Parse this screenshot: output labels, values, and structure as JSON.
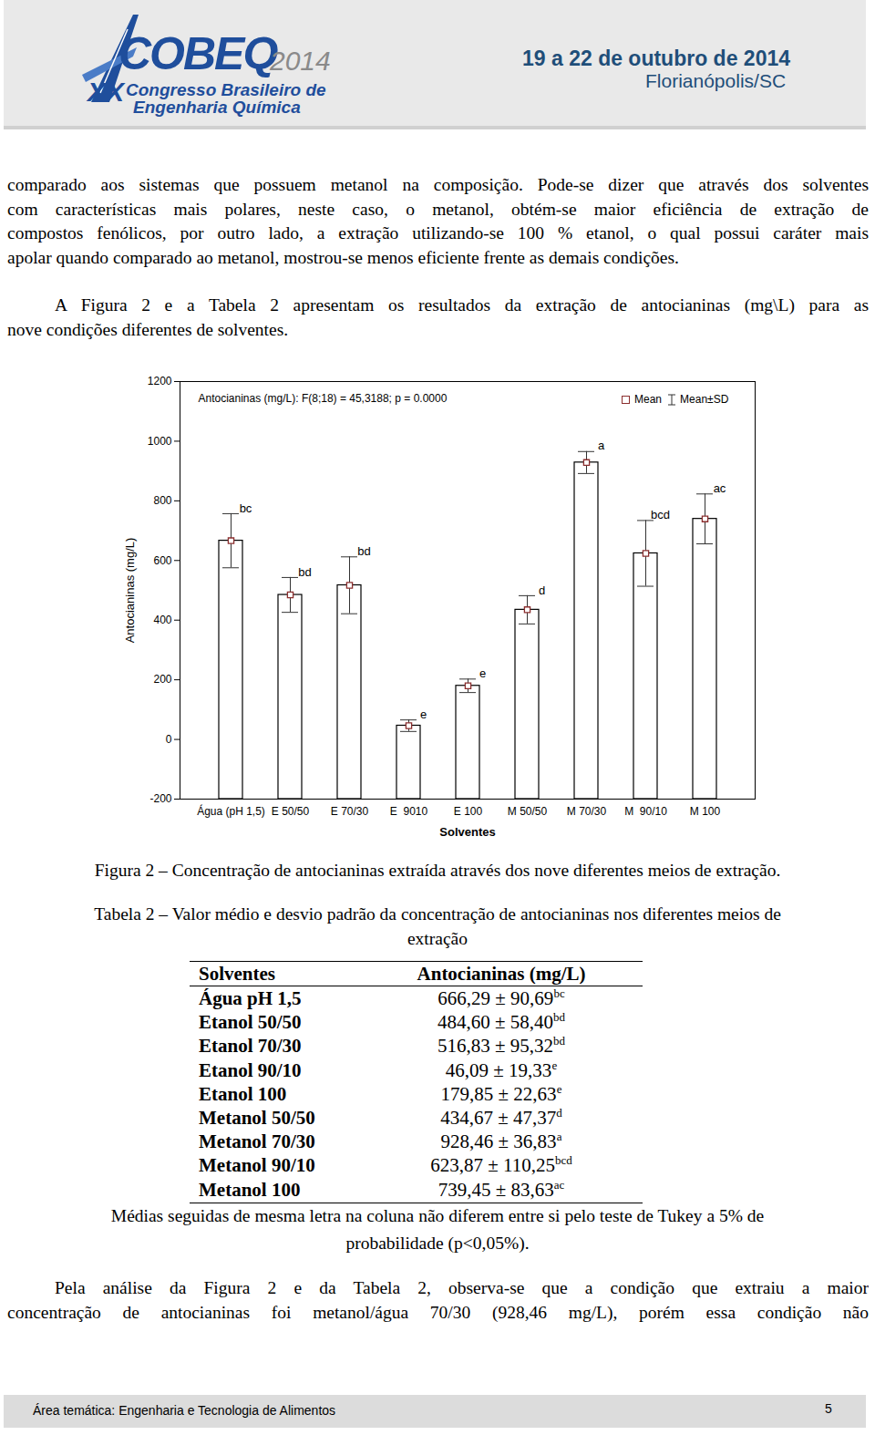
{
  "header": {
    "logo_main": "COBEQ",
    "logo_year": "2014",
    "logo_xx": "XX",
    "logo_line1": "Congresso Brasileiro de",
    "logo_line2": "Engenharia Química",
    "date": "19 a 22 de outubro de 2014",
    "place": "Florianópolis/SC"
  },
  "paragraphs": [
    [
      "comparado aos sistemas que possuem metanol na composição. Pode-se dizer que através dos solventes",
      "com características mais polares, neste caso, o metanol, obtém-se maior eficiência de extração de",
      "compostos fenólicos, por outro lado, a extração utilizando-se 100 % etanol, o qual possui caráter mais",
      "apolar quando comparado ao metanol, mostrou-se menos eficiente frente as demais condições."
    ],
    [
      "A Figura 2 e a Tabela 2 apresentam os resultados da extração de antocianinas (mg\\L) para as",
      "nove condições diferentes de solventes."
    ]
  ],
  "chart_data": {
    "type": "bar",
    "title": "Antocianinas (mg/L): F(8;18) = 45,3188; p = 0.0000",
    "x_label": "Solventes",
    "y_label": "Antocianinas (mg/L)",
    "categories": [
      "Água (pH 1,5)",
      "E 50/50",
      "E 70/30",
      "E  9010",
      "E 100",
      "M 50/50",
      "M 70/30",
      "M  90/10",
      "M 100"
    ],
    "series": [
      {
        "name": "Mean",
        "color": "#8b2e2e",
        "marker": "square",
        "values": [
          666.29,
          484.6,
          516.83,
          46.09,
          179.85,
          434.67,
          928.46,
          623.87,
          739.45
        ],
        "error": [
          90.69,
          58.4,
          95.32,
          19.33,
          22.63,
          47.37,
          36.83,
          110.25,
          83.63
        ],
        "error_name": "Mean±SD"
      }
    ],
    "letters": [
      "bc",
      "bd",
      "bd",
      "e",
      "e",
      "d",
      "a",
      "bcd",
      "ac"
    ],
    "ylim": [
      -200,
      1200
    ],
    "yticks": [
      -200,
      0,
      200,
      400,
      600,
      800,
      1000,
      1200
    ],
    "grid": false,
    "legend": "top-right"
  },
  "figure_caption": "Figura 2 – Concentração de antocianinas extraída através dos nove diferentes meios de extração.",
  "table_caption": [
    "Tabela 2 – Valor médio e desvio padrão da concentração de antocianinas nos diferentes meios de",
    "extração"
  ],
  "table": {
    "header": [
      "Solventes",
      "Antocianinas (mg/L)"
    ],
    "rows": [
      [
        "Água pH 1,5",
        "666,29 ± 90,69",
        "bc"
      ],
      [
        "Etanol 50/50",
        "484,60 ± 58,40",
        "bd"
      ],
      [
        "Etanol 70/30",
        "516,83 ± 95,32",
        "bd"
      ],
      [
        "Etanol 90/10",
        "46,09 ± 19,33",
        "e"
      ],
      [
        "Etanol 100",
        "179,85 ± 22,63",
        "e"
      ],
      [
        "Metanol 50/50",
        "434,67 ± 47,37",
        "d"
      ],
      [
        "Metanol 70/30",
        "928,46 ± 36,83",
        "a"
      ],
      [
        "Metanol 90/10",
        "623,87 ± 110,25",
        "bcd"
      ],
      [
        "Metanol 100",
        "739,45 ± 83,63",
        "ac"
      ]
    ]
  },
  "table_note": [
    "Médias seguidas de mesma letra na coluna não diferem entre si pelo teste de Tukey a 5% de",
    "probabilidade (p<0,05%)."
  ],
  "closing_paragraph": [
    "Pela análise da Figura 2 e da Tabela 2, observa-se que a condição que extraiu a maior",
    "concentração de antocianinas foi metanol/água 70/30 (928,46 mg/L), porém essa condição não"
  ],
  "footer": {
    "area": "Área temática: Engenharia e Tecnologia de Alimentos",
    "page": "5"
  }
}
